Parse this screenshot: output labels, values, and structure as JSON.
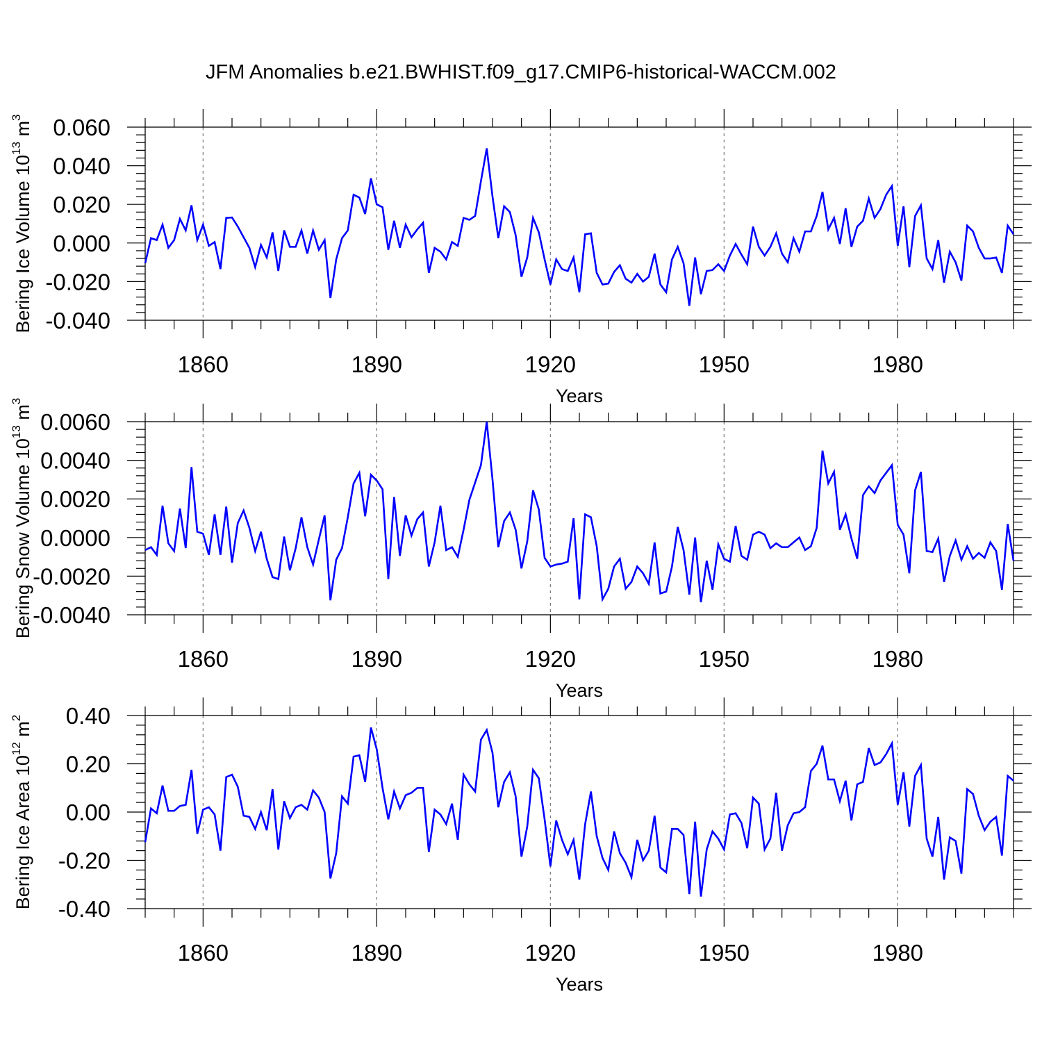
{
  "title": "JFM Anomalies b.e21.BWHIST.f09_g17.CMIP6-historical-WACCM.002",
  "chart_data": [
    {
      "type": "line",
      "ylabel_parts": [
        "Bering Ice Volume 10",
        "13",
        " m",
        "3"
      ],
      "xlabel": "Years",
      "xlim": [
        1850,
        2000
      ],
      "ylim": [
        -0.04,
        0.06
      ],
      "yticks": [
        -0.04,
        -0.02,
        0.0,
        0.02,
        0.04,
        0.06
      ],
      "ytick_labels": [
        "-0.040",
        "-0.020",
        "0.000",
        "0.020",
        "0.040",
        "0.060"
      ],
      "xticks": [
        1860,
        1890,
        1920,
        1950,
        1980
      ],
      "xtick_labels": [
        "1860",
        "1890",
        "1920",
        "1950",
        "1980"
      ],
      "grid": "dashed vertical at major x ticks",
      "color": "#0000ff",
      "series": [
        {
          "x_start": 1850,
          "values": [
            -0.0105,
            0.0025,
            0.0015,
            0.0095,
            -0.0025,
            0.0015,
            0.0125,
            0.0065,
            0.0195,
            0.0015,
            0.0095,
            -0.0015,
            0.0005,
            -0.0135,
            0.013,
            0.0132,
            0.0085,
            0.003,
            -0.0025,
            -0.0125,
            -0.001,
            -0.0075,
            0.0055,
            -0.0145,
            0.0065,
            -0.002,
            -0.002,
            0.0065,
            -0.0055,
            0.0065,
            -0.0035,
            0.0015,
            -0.0285,
            -0.0085,
            0.0025,
            0.0065,
            0.025,
            0.0235,
            0.015,
            0.0335,
            0.02,
            0.0185,
            -0.0035,
            0.0115,
            -0.0025,
            0.0095,
            0.003,
            0.007,
            0.0105,
            -0.0155,
            -0.0025,
            -0.0045,
            -0.0085,
            0.0005,
            -0.0015,
            0.013,
            0.012,
            0.014,
            0.032,
            0.049,
            0.024,
            0.0025,
            0.019,
            0.016,
            0.004,
            -0.0175,
            -0.0075,
            0.013,
            0.0055,
            -0.0085,
            -0.0215,
            -0.0085,
            -0.0135,
            -0.0145,
            -0.0075,
            -0.0255,
            0.0045,
            0.005,
            -0.0155,
            -0.0215,
            -0.021,
            -0.015,
            -0.0115,
            -0.0185,
            -0.0205,
            -0.016,
            -0.02,
            -0.0175,
            -0.0055,
            -0.0215,
            -0.0255,
            -0.0085,
            -0.002,
            -0.0105,
            -0.0325,
            -0.0075,
            -0.0265,
            -0.0145,
            -0.014,
            -0.011,
            -0.0145,
            -0.0065,
            -0.0005,
            -0.006,
            -0.011,
            0.0085,
            -0.002,
            -0.0065,
            -0.002,
            0.005,
            -0.0055,
            -0.01,
            0.0025,
            -0.0045,
            0.006,
            0.006,
            0.014,
            0.0265,
            0.007,
            0.013,
            -0.0005,
            0.018,
            -0.002,
            0.0085,
            0.0115,
            0.023,
            0.013,
            0.0175,
            0.025,
            0.0295,
            -0.0015,
            0.019,
            -0.0125,
            0.014,
            0.0195,
            -0.008,
            -0.0135,
            0.0015,
            -0.0205,
            -0.0045,
            -0.01,
            -0.0195,
            0.009,
            0.006,
            -0.0025,
            -0.008,
            -0.008,
            -0.0075,
            -0.0155,
            0.009,
            0.0045
          ]
        }
      ]
    },
    {
      "type": "line",
      "ylabel_parts": [
        "Bering Snow Volume 10",
        "13",
        " m",
        "3"
      ],
      "xlabel": "Years",
      "xlim": [
        1850,
        2000
      ],
      "ylim": [
        -0.004,
        0.006
      ],
      "yticks": [
        -0.004,
        -0.002,
        0.0,
        0.002,
        0.004,
        0.006
      ],
      "ytick_labels": [
        "-0.0040",
        "-0.0020",
        "0.0000",
        "0.0020",
        "0.0040",
        "0.0060"
      ],
      "xticks": [
        1860,
        1890,
        1920,
        1950,
        1980
      ],
      "xtick_labels": [
        "1860",
        "1890",
        "1920",
        "1950",
        "1980"
      ],
      "grid": "dashed vertical at major x ticks",
      "color": "#0000ff",
      "series": [
        {
          "x_start": 1850,
          "values": [
            -0.00065,
            -0.0005,
            -0.0009,
            0.00165,
            -0.0003,
            -0.0007,
            0.0015,
            -0.00055,
            0.00365,
            0.0003,
            0.0002,
            -0.0009,
            0.0012,
            -0.0009,
            0.0016,
            -0.0013,
            0.00075,
            0.0014,
            0.0005,
            -0.0007,
            0.0003,
            -0.0011,
            -0.00205,
            -0.00215,
            5e-05,
            -0.0017,
            -0.00055,
            0.00105,
            -0.0005,
            -0.0014,
            -0.0001,
            0.00115,
            -0.00325,
            -0.00115,
            -0.00055,
            0.00105,
            0.0028,
            0.00335,
            0.0011,
            0.00325,
            0.00295,
            0.0025,
            -0.00215,
            0.0021,
            -0.00095,
            0.00115,
            0.0001,
            0.00095,
            0.0013,
            -0.0015,
            -0.00025,
            0.00165,
            -0.00065,
            -0.0005,
            -0.001,
            0.0004,
            0.00195,
            0.00285,
            0.00375,
            0.006,
            0.003,
            -0.0005,
            0.00085,
            0.0013,
            0.0004,
            -0.0016,
            -0.0002,
            0.00245,
            0.00145,
            -0.00105,
            -0.0015,
            -0.0014,
            -0.00135,
            -0.00125,
            0.001,
            -0.0032,
            0.0012,
            0.00105,
            -0.00045,
            -0.0032,
            -0.00265,
            -0.0015,
            -0.0011,
            -0.00265,
            -0.0023,
            -0.0015,
            -0.00185,
            -0.0024,
            -0.00025,
            -0.0029,
            -0.0028,
            -0.0015,
            0.00055,
            -0.00065,
            -0.00295,
            0.0,
            -0.00335,
            -0.0012,
            -0.0027,
            -0.00035,
            -0.0011,
            -0.00125,
            0.0006,
            -0.00095,
            -0.00115,
            0.00015,
            0.0003,
            0.00015,
            -0.00055,
            -0.0003,
            -0.0005,
            -0.0005,
            -0.00025,
            0.0,
            -0.00065,
            -0.00045,
            0.0005,
            0.0045,
            0.0028,
            0.0034,
            0.0004,
            0.0012,
            -5e-05,
            -0.0011,
            0.0022,
            0.00265,
            0.0023,
            0.00295,
            0.00335,
            0.00375,
            0.00065,
            0.00015,
            -0.00185,
            0.00245,
            0.0034,
            -0.0007,
            -0.00075,
            -5e-05,
            -0.0023,
            -0.00095,
            -0.00015,
            -0.00115,
            -0.00045,
            -0.0011,
            -0.0008,
            -0.00105,
            -0.00025,
            -0.0007,
            -0.0027,
            0.0007,
            -0.0012
          ]
        }
      ]
    },
    {
      "type": "line",
      "ylabel_parts": [
        "Bering Ice Area 10",
        "12",
        " m",
        "2"
      ],
      "xlabel": "Years",
      "xlim": [
        1850,
        2000
      ],
      "ylim": [
        -0.4,
        0.4
      ],
      "yticks": [
        -0.4,
        -0.2,
        0.0,
        0.2,
        0.4
      ],
      "ytick_labels": [
        "-0.40",
        "-0.20",
        "0.00",
        "0.20",
        "0.40"
      ],
      "xticks": [
        1860,
        1890,
        1920,
        1950,
        1980
      ],
      "xtick_labels": [
        "1860",
        "1890",
        "1920",
        "1950",
        "1980"
      ],
      "grid": "dashed vertical at major x ticks",
      "color": "#0000ff",
      "series": [
        {
          "x_start": 1850,
          "values": [
            -0.125,
            0.015,
            -0.005,
            0.11,
            0.005,
            0.005,
            0.025,
            0.03,
            0.175,
            -0.09,
            0.01,
            0.02,
            -0.01,
            -0.16,
            0.145,
            0.155,
            0.105,
            -0.015,
            -0.02,
            -0.07,
            0.0,
            -0.075,
            0.095,
            -0.155,
            0.045,
            -0.025,
            0.02,
            0.03,
            0.01,
            0.09,
            0.06,
            0.0,
            -0.275,
            -0.17,
            0.065,
            0.035,
            0.23,
            0.235,
            0.125,
            0.35,
            0.26,
            0.1,
            -0.03,
            0.085,
            0.015,
            0.07,
            0.08,
            0.1,
            0.1,
            -0.165,
            0.01,
            -0.01,
            -0.05,
            0.035,
            -0.115,
            0.155,
            0.115,
            0.085,
            0.3,
            0.34,
            0.245,
            0.02,
            0.125,
            0.165,
            0.065,
            -0.185,
            -0.06,
            0.175,
            0.14,
            -0.03,
            -0.225,
            -0.035,
            -0.115,
            -0.175,
            -0.115,
            -0.28,
            -0.05,
            0.085,
            -0.1,
            -0.19,
            -0.24,
            -0.08,
            -0.17,
            -0.21,
            -0.27,
            -0.115,
            -0.2,
            -0.16,
            -0.015,
            -0.23,
            -0.25,
            -0.07,
            -0.07,
            -0.095,
            -0.34,
            -0.04,
            -0.35,
            -0.155,
            -0.08,
            -0.11,
            -0.155,
            -0.01,
            -0.005,
            -0.045,
            -0.15,
            0.06,
            0.035,
            -0.155,
            -0.11,
            0.08,
            -0.16,
            -0.055,
            -0.005,
            0.0,
            0.02,
            0.17,
            0.2,
            0.275,
            0.135,
            0.135,
            0.045,
            0.13,
            -0.035,
            0.115,
            0.125,
            0.265,
            0.195,
            0.205,
            0.24,
            0.285,
            0.03,
            0.165,
            -0.06,
            0.15,
            0.195,
            -0.11,
            -0.185,
            -0.02,
            -0.28,
            -0.105,
            -0.12,
            -0.255,
            0.095,
            0.075,
            -0.015,
            -0.075,
            -0.04,
            -0.02,
            -0.18,
            0.15,
            0.13
          ]
        }
      ]
    }
  ]
}
